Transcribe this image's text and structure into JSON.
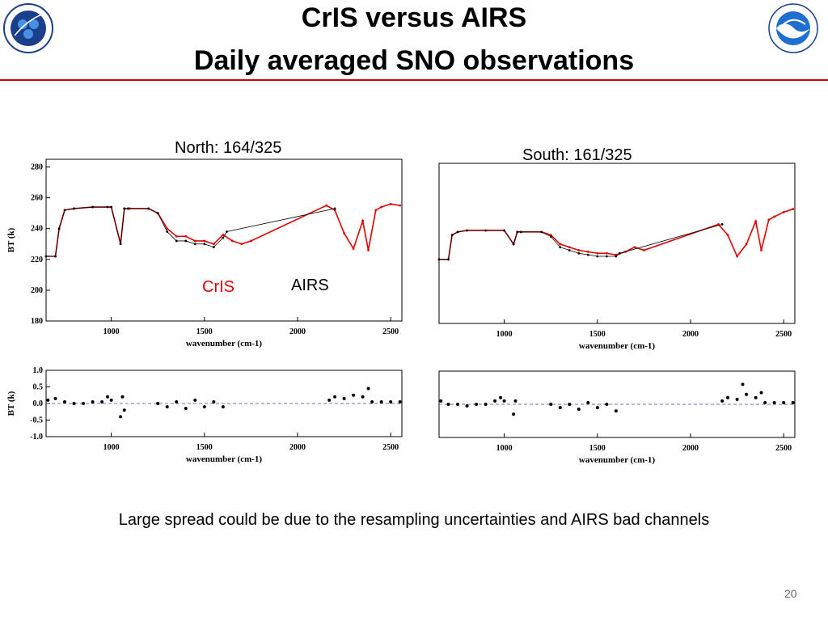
{
  "slide": {
    "title_line1": "CrIS versus AIRS",
    "title_line2": "Daily averaged SNO observations",
    "caption": "Large spread could be due to the resampling uncertainties and AIRS bad channels",
    "page_number": "20",
    "accent_color": "#d00000",
    "logos": [
      "noaa-nesdis-star-logo",
      "noaa-logo"
    ]
  },
  "panels": {
    "north_label": "North: 164/325",
    "south_label": "South: 161/325",
    "cris_label": "CrIS",
    "airs_label": "AIRS"
  },
  "chart_data": [
    {
      "type": "line",
      "panel": "north-bt",
      "xlabel": "wavenumber (cm-1)",
      "ylabel": "BT (k)",
      "xlim": [
        650,
        2560
      ],
      "ylim": [
        180,
        285
      ],
      "xticks": [
        1000,
        1500,
        2000,
        2500
      ],
      "yticks": [
        180,
        200,
        220,
        240,
        260,
        280
      ],
      "series": [
        {
          "name": "CrIS",
          "color": "#e00000",
          "x": [
            650,
            700,
            720,
            750,
            800,
            900,
            1000,
            1050,
            1070,
            1090,
            1100,
            1200,
            1250,
            1300,
            1350,
            1400,
            1450,
            1500,
            1550,
            1600,
            1650,
            1700,
            1750,
            2155,
            2200,
            2250,
            2300,
            2350,
            2380,
            2420,
            2450,
            2500,
            2550
          ],
          "y": [
            222,
            222,
            240,
            252,
            253,
            254,
            254,
            230,
            253,
            253,
            253,
            253,
            250,
            240,
            235,
            235,
            232,
            232,
            230,
            236,
            232,
            230,
            232,
            255,
            252,
            237,
            227,
            245,
            226,
            252,
            254,
            256,
            255
          ]
        },
        {
          "name": "AIRS",
          "color": "#000000",
          "x": [
            650,
            700,
            720,
            750,
            800,
            900,
            980,
            1000,
            1050,
            1070,
            1090,
            1200,
            1250,
            1300,
            1350,
            1400,
            1450,
            1500,
            1550,
            1600,
            1620,
            2200
          ],
          "y": [
            222,
            222,
            240,
            252,
            253,
            254,
            254,
            254,
            230,
            253,
            253,
            253,
            250,
            238,
            232,
            232,
            230,
            230,
            228,
            234,
            238,
            253
          ]
        }
      ]
    },
    {
      "type": "scatter",
      "panel": "north-diff",
      "xlabel": "wavenumber (cm-1)",
      "ylabel": "BT (k)",
      "xlim": [
        650,
        2560
      ],
      "ylim": [
        -1.0,
        1.0
      ],
      "xticks": [
        1000,
        1500,
        2000,
        2500
      ],
      "yticks": [
        -1.0,
        -0.5,
        0.0,
        0.5,
        1.0
      ],
      "series": [
        {
          "name": "",
          "color": "#000000",
          "x": [
            660,
            700,
            750,
            800,
            850,
            900,
            950,
            980,
            1000,
            1050,
            1060,
            1070,
            1250,
            1300,
            1350,
            1400,
            1450,
            1500,
            1550,
            1600,
            2170,
            2200,
            2250,
            2300,
            2350,
            2380,
            2400,
            2450,
            2500,
            2550
          ],
          "y": [
            0.1,
            0.15,
            0.05,
            0.0,
            0.0,
            0.05,
            0.05,
            0.2,
            0.1,
            -0.4,
            0.2,
            -0.2,
            0.0,
            -0.1,
            0.05,
            -0.15,
            0.1,
            -0.1,
            0.05,
            -0.1,
            0.1,
            0.2,
            0.15,
            0.25,
            0.2,
            0.45,
            0.05,
            0.05,
            0.05,
            0.05
          ]
        }
      ]
    },
    {
      "type": "line",
      "panel": "south-bt",
      "xlabel": "wavenumber (cm-1)",
      "ylabel": "",
      "xlim": [
        650,
        2560
      ],
      "ylim": [
        180,
        285
      ],
      "xticks": [
        1000,
        1500,
        2000,
        2500
      ],
      "yticks": [],
      "series": [
        {
          "name": "CrIS",
          "color": "#e00000",
          "x": [
            650,
            700,
            720,
            750,
            800,
            900,
            1000,
            1050,
            1070,
            1090,
            1200,
            1250,
            1300,
            1350,
            1400,
            1450,
            1500,
            1550,
            1600,
            1650,
            1700,
            1750,
            2150,
            2200,
            2250,
            2300,
            2350,
            2380,
            2420,
            2450,
            2500,
            2550
          ],
          "y": [
            222,
            222,
            238,
            240,
            241,
            241,
            241,
            232,
            240,
            240,
            240,
            238,
            232,
            230,
            228,
            227,
            226,
            226,
            225,
            227,
            230,
            228,
            245,
            238,
            224,
            232,
            247,
            228,
            248,
            250,
            253,
            255
          ]
        },
        {
          "name": "AIRS",
          "color": "#000000",
          "x": [
            650,
            700,
            720,
            750,
            800,
            900,
            1000,
            1050,
            1070,
            1090,
            1200,
            1250,
            1300,
            1350,
            1400,
            1450,
            1500,
            1550,
            1600,
            1620,
            2170
          ],
          "y": [
            222,
            222,
            238,
            240,
            241,
            241,
            241,
            232,
            240,
            240,
            240,
            237,
            230,
            228,
            226,
            225,
            224,
            224,
            224,
            226,
            245
          ]
        }
      ]
    },
    {
      "type": "scatter",
      "panel": "south-diff",
      "xlabel": "wavenumber (cm-1)",
      "ylabel": "",
      "xlim": [
        650,
        2560
      ],
      "ylim": [
        -1.0,
        1.0
      ],
      "xticks": [
        1000,
        1500,
        2000,
        2500
      ],
      "yticks": [],
      "series": [
        {
          "name": "",
          "color": "#000000",
          "x": [
            660,
            700,
            750,
            800,
            850,
            900,
            950,
            980,
            1000,
            1050,
            1060,
            1250,
            1300,
            1350,
            1400,
            1450,
            1500,
            1550,
            1600,
            2170,
            2200,
            2250,
            2280,
            2300,
            2350,
            2380,
            2400,
            2450,
            2500,
            2550
          ],
          "y": [
            0.1,
            0.0,
            0.0,
            -0.05,
            0.0,
            0.0,
            0.1,
            0.2,
            0.1,
            -0.3,
            0.1,
            0.0,
            -0.1,
            0.0,
            -0.15,
            0.05,
            -0.1,
            0.0,
            -0.2,
            0.1,
            0.2,
            0.15,
            0.6,
            0.3,
            0.2,
            0.35,
            0.05,
            0.05,
            0.05,
            0.05
          ]
        }
      ]
    }
  ]
}
